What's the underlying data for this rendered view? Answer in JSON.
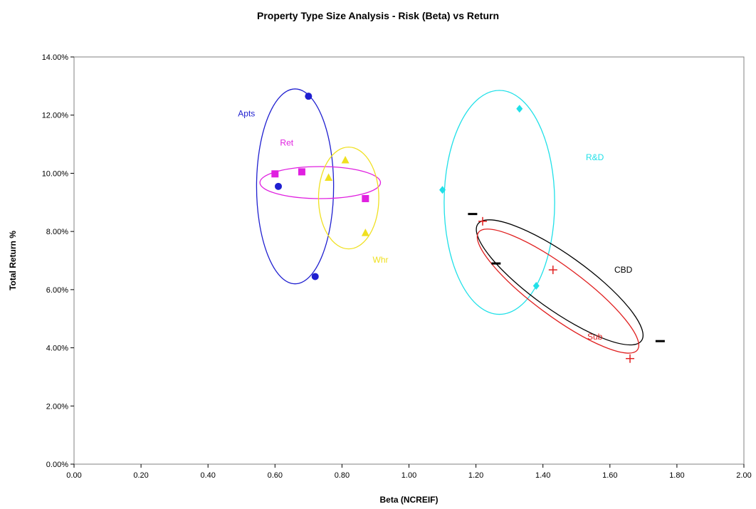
{
  "chart_data": {
    "type": "scatter",
    "title": "Property Type Size Analysis - Risk (Beta) vs Return",
    "xlabel": "Beta (NCREIF)",
    "ylabel": "Total Return %",
    "xlim": [
      0,
      2
    ],
    "ylim": [
      0,
      0.14
    ],
    "x_ticks": [
      0,
      0.2,
      0.4,
      0.6,
      0.8,
      1.0,
      1.2,
      1.4,
      1.6,
      1.8,
      2.0
    ],
    "x_tick_labels": [
      "0.00",
      "0.20",
      "0.40",
      "0.60",
      "0.80",
      "1.00",
      "1.20",
      "1.40",
      "1.60",
      "1.80",
      "2.00"
    ],
    "y_ticks": [
      0,
      0.02,
      0.04,
      0.06,
      0.08,
      0.1,
      0.12,
      0.14
    ],
    "y_tick_labels": [
      "0.00%",
      "2.00%",
      "4.00%",
      "6.00%",
      "8.00%",
      "10.00%",
      "12.00%",
      "14.00%"
    ],
    "grid": false,
    "legend": "none",
    "series": [
      {
        "name": "Apts",
        "marker": "circle",
        "color": "#1f1fd0",
        "points": [
          [
            0.7,
            0.1265
          ],
          [
            0.61,
            0.0955
          ],
          [
            0.72,
            0.0645
          ]
        ],
        "ellipse": {
          "cx": 0.66,
          "cy": 0.0955,
          "rx": 0.115,
          "ry": 0.0335,
          "angle": 0
        }
      },
      {
        "name": "Ret",
        "marker": "square",
        "color": "#e020e0",
        "points": [
          [
            0.6,
            0.0998
          ],
          [
            0.68,
            0.1005
          ],
          [
            0.87,
            0.0913
          ]
        ],
        "ellipse": {
          "cx": 0.735,
          "cy": 0.0968,
          "rx": 0.18,
          "ry": 0.0055,
          "angle": 0
        }
      },
      {
        "name": "Whr",
        "marker": "triangle",
        "color": "#f0e020",
        "points": [
          [
            0.81,
            0.1045
          ],
          [
            0.76,
            0.0985
          ],
          [
            0.87,
            0.0795
          ]
        ],
        "ellipse": {
          "cx": 0.82,
          "cy": 0.0915,
          "rx": 0.09,
          "ry": 0.0175,
          "angle": 0
        }
      },
      {
        "name": "R&D",
        "marker": "diamond",
        "color": "#20e0e8",
        "points": [
          [
            1.33,
            0.1222
          ],
          [
            1.1,
            0.0943
          ],
          [
            1.38,
            0.0613
          ]
        ],
        "ellipse": {
          "cx": 1.27,
          "cy": 0.09,
          "rx": 0.165,
          "ry": 0.0385,
          "angle": 0
        }
      },
      {
        "name": "CBD",
        "marker": "dash",
        "color": "#000000",
        "points": [
          [
            1.19,
            0.086
          ],
          [
            1.26,
            0.069
          ],
          [
            1.75,
            0.0423
          ]
        ],
        "ellipse": {
          "cx": 1.45,
          "cy": 0.0625,
          "rx": 0.3,
          "ry": 0.0095,
          "angle": 35.5
        }
      },
      {
        "name": "Sub",
        "marker": "plus",
        "color": "#e02020",
        "points": [
          [
            1.22,
            0.0835
          ],
          [
            1.43,
            0.0668
          ],
          [
            1.66,
            0.0363
          ]
        ],
        "ellipse": {
          "cx": 1.445,
          "cy": 0.0595,
          "rx": 0.295,
          "ry": 0.0085,
          "angle": 36.5
        }
      }
    ],
    "annotations": [
      {
        "text": "Apts",
        "x": 0.515,
        "y": 0.1205,
        "color": "#1f1fd0"
      },
      {
        "text": "Ret",
        "x": 0.635,
        "y": 0.1105,
        "color": "#e020e0"
      },
      {
        "text": "Whr",
        "x": 0.915,
        "y": 0.0703,
        "color": "#f0e020"
      },
      {
        "text": "R&D",
        "x": 1.555,
        "y": 0.1055,
        "color": "#20e0e8"
      },
      {
        "text": "CBD",
        "x": 1.64,
        "y": 0.0668,
        "color": "#000000"
      },
      {
        "text": "Sub",
        "x": 1.555,
        "y": 0.0438,
        "color": "#e02020"
      }
    ]
  }
}
